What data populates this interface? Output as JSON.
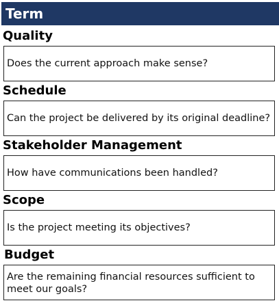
{
  "header": {
    "title": "Term"
  },
  "terms": [
    {
      "title": "Quality",
      "description": "Does the current approach make sense?"
    },
    {
      "title": "Schedule",
      "description": "Can the project be delivered by its original deadline?"
    },
    {
      "title": "Stakeholder Management",
      "description": "How have communications been handled?"
    },
    {
      "title": "Scope",
      "description": "Is the project meeting its objectives?"
    },
    {
      "title": "Budget",
      "description": "Are the remaining financial resources sufficient to meet our goals?"
    }
  ],
  "colors": {
    "header_background": "#1f3864",
    "header_text": "#ffffff",
    "box_border": "#222222"
  }
}
